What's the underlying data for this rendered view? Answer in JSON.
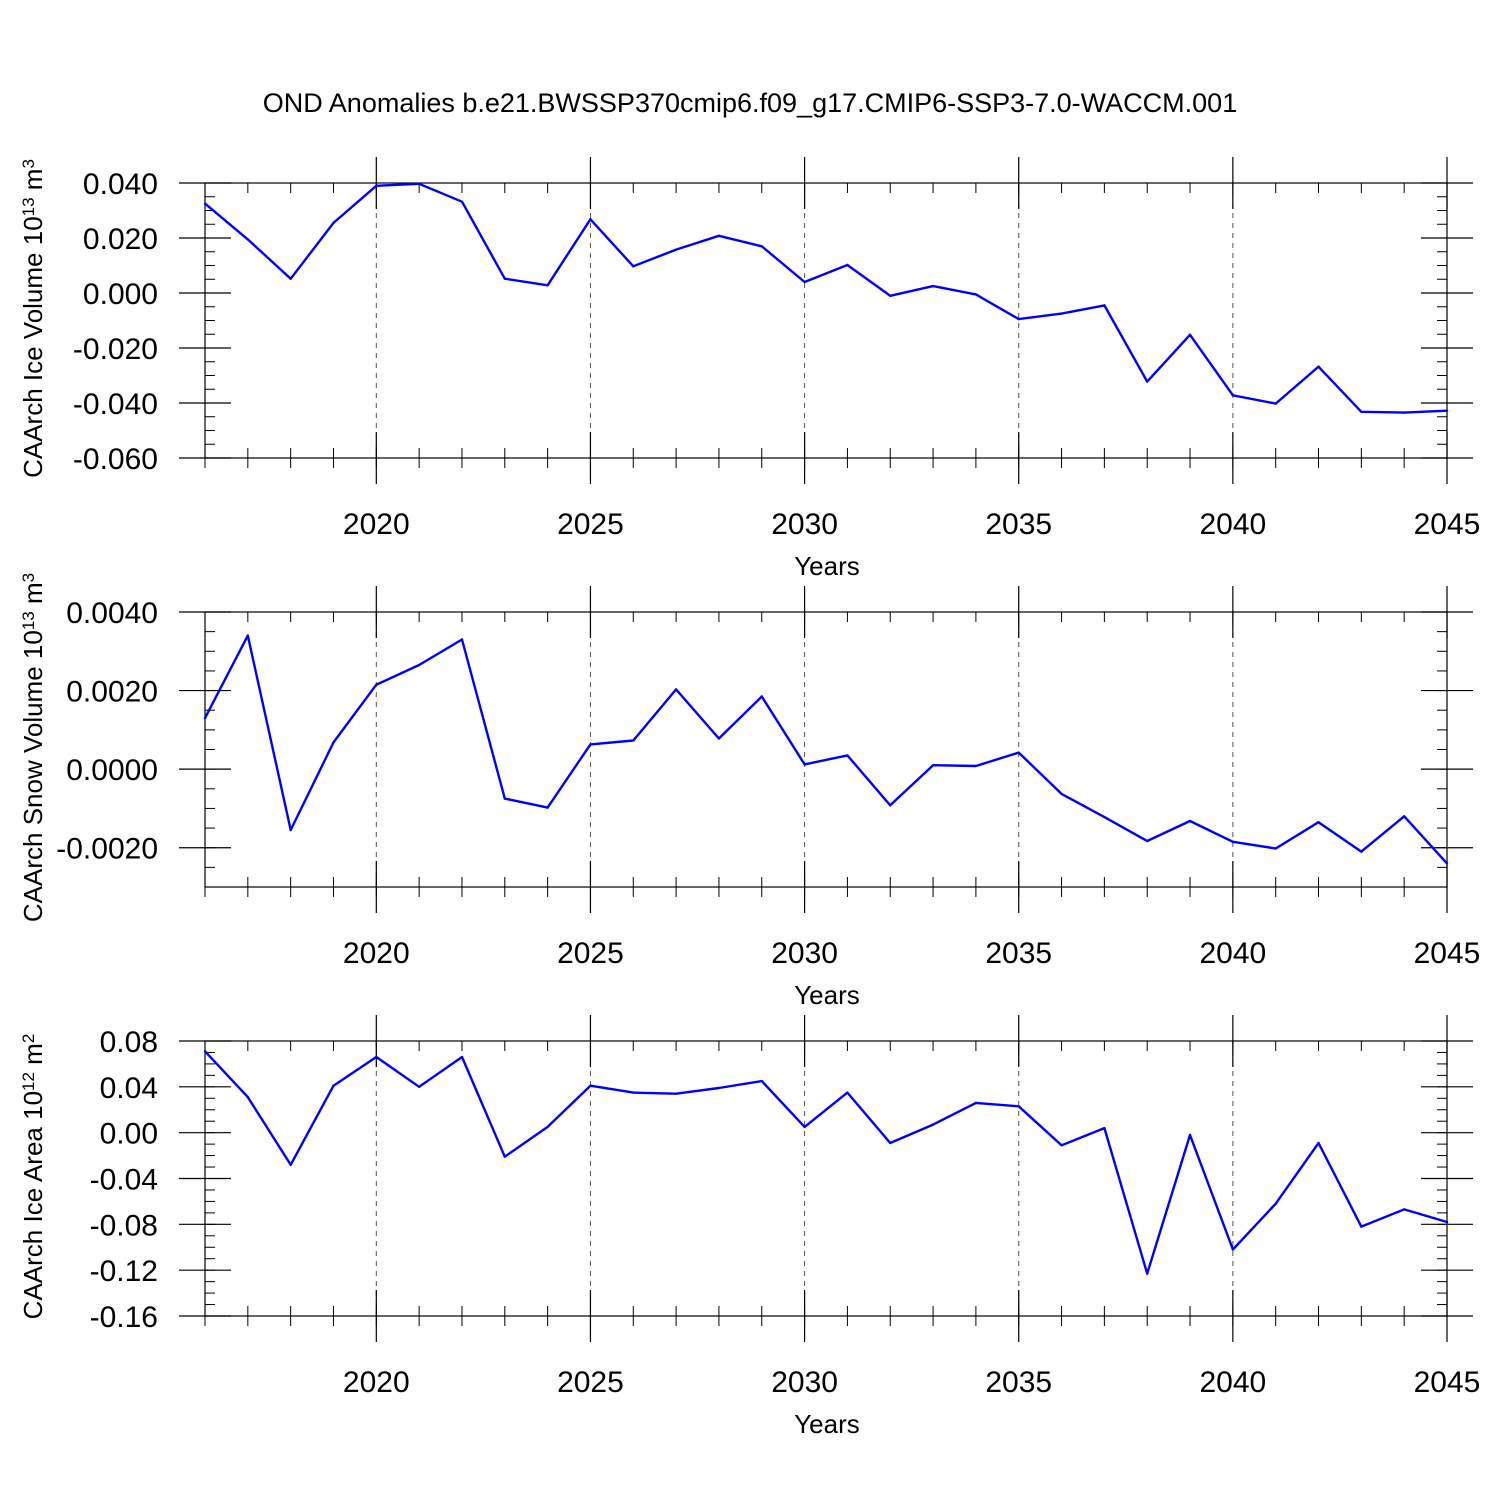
{
  "title": "OND Anomalies b.e21.BWSSP370cmip6.f09_g17.CMIP6-SSP3-7.0-WACCM.001",
  "line_color": "#0000ff",
  "chart_data": [
    {
      "type": "line",
      "xlabel": "Years",
      "ylabel_main": "CAArch Ice Volume 10",
      "ylabel_exp": "13",
      "ylabel_unit": " m",
      "ylabel_unit_exp": "3",
      "x": [
        2016,
        2017,
        2018,
        2019,
        2020,
        2021,
        2022,
        2023,
        2024,
        2025,
        2026,
        2027,
        2028,
        2029,
        2030,
        2031,
        2032,
        2033,
        2034,
        2035,
        2036,
        2037,
        2038,
        2039,
        2040,
        2041,
        2042,
        2043,
        2044,
        2045
      ],
      "values": [
        0.0325,
        0.0195,
        0.0052,
        0.0255,
        0.039,
        0.0397,
        0.0332,
        0.0052,
        0.0028,
        0.0268,
        0.0097,
        0.0158,
        0.0208,
        0.017,
        0.004,
        0.0102,
        -0.001,
        0.0025,
        -0.0005,
        -0.0095,
        -0.0075,
        -0.0045,
        -0.0322,
        -0.0152,
        -0.0372,
        -0.0402,
        -0.0268,
        -0.0432,
        -0.0435,
        -0.0428
      ],
      "xlim": [
        2016,
        2045
      ],
      "ylim": [
        -0.06,
        0.04
      ],
      "yticks": [
        -0.06,
        -0.04,
        -0.02,
        0.0,
        0.02,
        0.04
      ],
      "ytick_labels": [
        "-0.060",
        "-0.040",
        "-0.020",
        "0.000",
        "0.020",
        "0.040"
      ],
      "xticks": [
        2020,
        2025,
        2030,
        2035,
        2040,
        2045
      ],
      "xtick_labels": [
        "2020",
        "2025",
        "2030",
        "2035",
        "2040",
        "2045"
      ],
      "minor_y_step": 0.005,
      "grid": "vertical dashed at major x ticks"
    },
    {
      "type": "line",
      "xlabel": "Years",
      "ylabel_main": "CAArch Snow Volume 10",
      "ylabel_exp": "13",
      "ylabel_unit": " m",
      "ylabel_unit_exp": "3",
      "x": [
        2016,
        2017,
        2018,
        2019,
        2020,
        2021,
        2022,
        2023,
        2024,
        2025,
        2026,
        2027,
        2028,
        2029,
        2030,
        2031,
        2032,
        2033,
        2034,
        2035,
        2036,
        2037,
        2038,
        2039,
        2040,
        2041,
        2042,
        2043,
        2044,
        2045
      ],
      "values": [
        0.0013,
        0.0034,
        -0.00155,
        0.00068,
        0.00215,
        0.00265,
        0.0033,
        -0.00075,
        -0.00098,
        0.00063,
        0.00073,
        0.00203,
        0.00078,
        0.00185,
        0.00012,
        0.00035,
        -0.00092,
        0.0001,
        8e-05,
        0.00042,
        -0.00063,
        -0.00122,
        -0.00183,
        -0.00132,
        -0.00185,
        -0.00202,
        -0.00135,
        -0.0021,
        -0.0012,
        -0.0024
      ],
      "xlim": [
        2016,
        2045
      ],
      "ylim": [
        -0.003,
        0.004
      ],
      "yticks": [
        -0.002,
        0.0,
        0.002,
        0.004
      ],
      "ytick_labels": [
        "-0.0020",
        "0.0000",
        "0.0020",
        "0.0040"
      ],
      "xticks": [
        2020,
        2025,
        2030,
        2035,
        2040,
        2045
      ],
      "xtick_labels": [
        "2020",
        "2025",
        "2030",
        "2035",
        "2040",
        "2045"
      ],
      "minor_y_step": 0.0005,
      "grid": "vertical dashed at major x ticks"
    },
    {
      "type": "line",
      "xlabel": "Years",
      "ylabel_main": "CAArch Ice Area 10",
      "ylabel_exp": "12",
      "ylabel_unit": " m",
      "ylabel_unit_exp": "2",
      "x": [
        2016,
        2017,
        2018,
        2019,
        2020,
        2021,
        2022,
        2023,
        2024,
        2025,
        2026,
        2027,
        2028,
        2029,
        2030,
        2031,
        2032,
        2033,
        2034,
        2035,
        2036,
        2037,
        2038,
        2039,
        2040,
        2041,
        2042,
        2043,
        2044,
        2045
      ],
      "values": [
        0.071,
        0.031,
        -0.028,
        0.041,
        0.066,
        0.04,
        0.066,
        -0.021,
        0.005,
        0.041,
        0.035,
        0.034,
        0.039,
        0.045,
        0.005,
        0.035,
        -0.009,
        0.007,
        0.026,
        0.023,
        -0.011,
        0.004,
        -0.123,
        -0.002,
        -0.102,
        -0.062,
        -0.009,
        -0.082,
        -0.067,
        -0.078
      ],
      "xlim": [
        2016,
        2045
      ],
      "ylim": [
        -0.16,
        0.08
      ],
      "yticks": [
        -0.16,
        -0.12,
        -0.08,
        -0.04,
        0.0,
        0.04,
        0.08
      ],
      "ytick_labels": [
        "-0.16",
        "-0.12",
        "-0.08",
        "-0.04",
        "0.00",
        "0.04",
        "0.08"
      ],
      "xticks": [
        2020,
        2025,
        2030,
        2035,
        2040,
        2045
      ],
      "xtick_labels": [
        "2020",
        "2025",
        "2030",
        "2035",
        "2040",
        "2045"
      ],
      "minor_y_step": 0.01,
      "grid": "vertical dashed at major x ticks"
    }
  ]
}
